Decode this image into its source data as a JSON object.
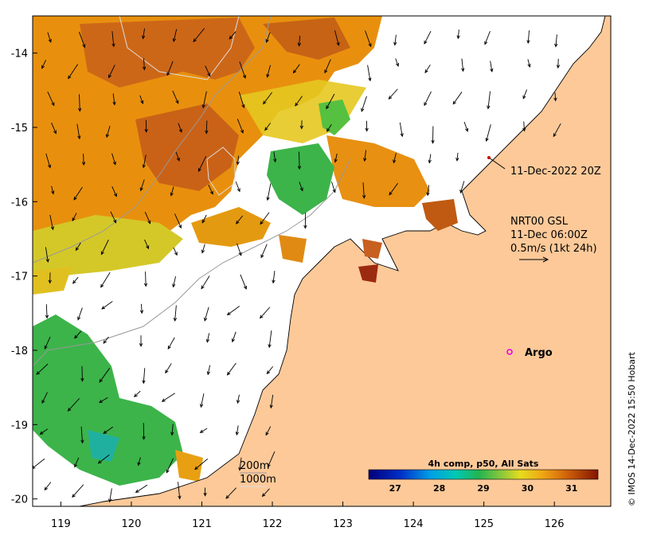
{
  "map": {
    "lon_ticks": [
      "119",
      "120",
      "121",
      "122",
      "123",
      "124",
      "125",
      "126"
    ],
    "lat_ticks": [
      "-14",
      "-15",
      "-16",
      "-17",
      "-18",
      "-19",
      "-20"
    ],
    "lon_range": [
      118.6,
      126.8
    ],
    "lat_range": [
      -20.1,
      -13.5
    ]
  },
  "annotations": {
    "argo_timestamp": "11-Dec-2022 20Z",
    "current_product": "NRT00 GSL",
    "current_time": "11-Dec 06:00Z",
    "current_scale": "0.5m/s (1kt 24h)",
    "argo_label": "Argo",
    "contour_200": "200m",
    "contour_1000": "1000m"
  },
  "colorbar": {
    "title": "4h comp, p50, All Sats",
    "ticks": [
      "27",
      "28",
      "29",
      "30",
      "31"
    ]
  },
  "credit": "© IMOS 14-Dec-2022 15:50 Hobart",
  "colors": {
    "land": "#fdc999",
    "warm": "#c85f0e",
    "orange": "#e88a10",
    "yellow": "#e8c820",
    "green": "#3cb44a",
    "argo": "#ee00ee"
  }
}
